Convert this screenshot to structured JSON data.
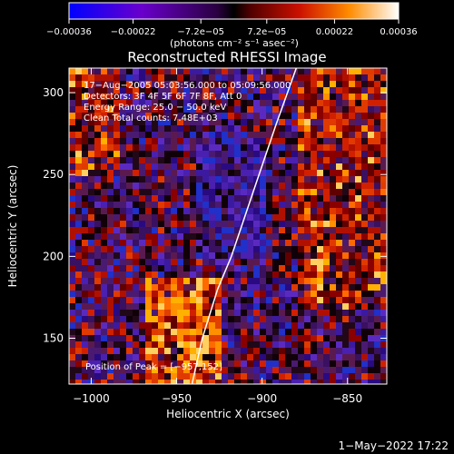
{
  "chart_data": {
    "type": "heatmap",
    "title": "Reconstructed RHESSI Image",
    "xlabel": "Heliocentric X (arcsec)",
    "ylabel": "Heliocentric Y (arcsec)",
    "xlim": [
      -1013,
      -827
    ],
    "ylim": [
      122,
      315
    ],
    "x_ticks": [
      -1000,
      -950,
      -900,
      -850
    ],
    "y_ticks": [
      150,
      200,
      250,
      300
    ],
    "x_tick_labels": [
      "−1000",
      "−950",
      "−900",
      "−850"
    ],
    "y_tick_labels": [
      "150",
      "200",
      "250",
      "300"
    ],
    "colorbar": {
      "min": -0.00036,
      "max": 0.00036,
      "tick_values": [
        -0.00036,
        -0.00022,
        -7.2e-05,
        7.2e-05,
        0.00022,
        0.00036
      ],
      "tick_labels": [
        "−0.00036",
        "−0.00022",
        "−7.2e−05",
        "7.2e−05",
        "0.00022",
        "0.00036"
      ],
      "units": "(photons cm⁻² s⁻¹ asec⁻²)",
      "colors": [
        "#0000ff",
        "#8800cc",
        "#000000",
        "#cc2200",
        "#ff8800",
        "#ffffff"
      ]
    },
    "annotations": [
      "17−Aug−2005 05:03:56.000 to 05:09:56.000",
      "Detectors: 3F 4F 5F 6F 7F 8F, Att 0",
      "Energy Range: 25.0 − 50.0 keV",
      "Clean    Total counts: 7.48E+03"
    ],
    "peak_label": "Position of Peak = [−957,152]",
    "peak": [
      -957,
      152
    ],
    "limb_curve": [
      [
        -941,
        122
      ],
      [
        -935,
        150
      ],
      [
        -926,
        180
      ],
      [
        -918,
        200
      ],
      [
        -905,
        240
      ],
      [
        -892,
        280
      ],
      [
        -880,
        315
      ]
    ],
    "intensity_regions": [
      {
        "x": [
          -970,
          -925
        ],
        "y": [
          122,
          190
        ],
        "level": "high"
      },
      {
        "x": [
          -940,
          -900
        ],
        "y": [
          200,
          280
        ],
        "level": "negative"
      },
      {
        "x": [
          -1013,
          -985
        ],
        "y": [
          250,
          315
        ],
        "level": "positive"
      },
      {
        "x": [
          -880,
          -827
        ],
        "y": [
          170,
          315
        ],
        "level": "positive"
      }
    ]
  },
  "footer": {
    "timestamp": "1−May−2022 17:22"
  }
}
